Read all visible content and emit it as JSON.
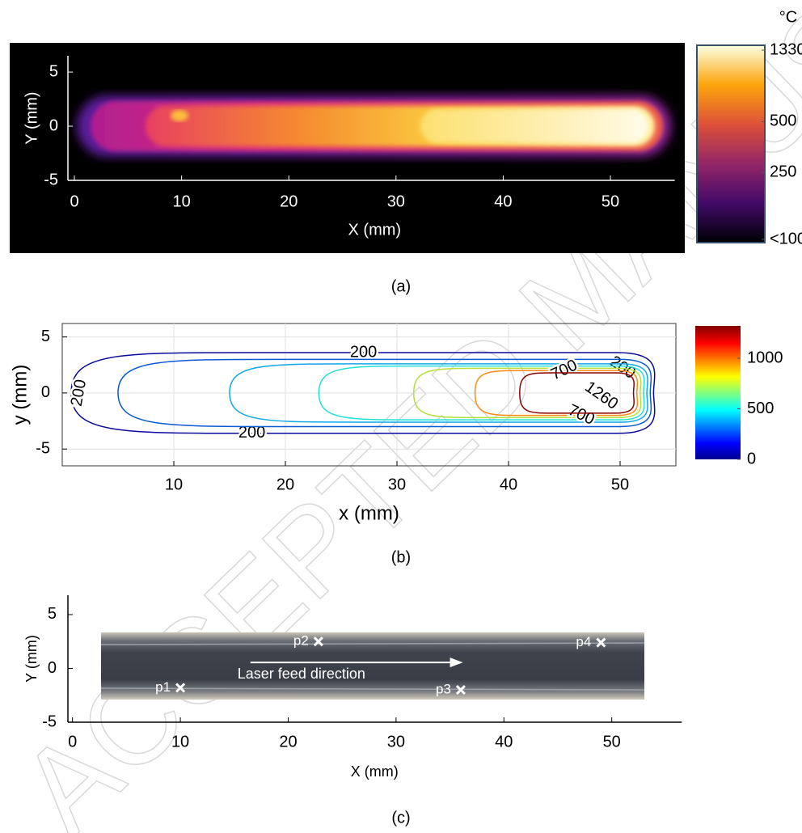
{
  "chart_data": [
    {
      "type": "heatmap",
      "caption": "(a)",
      "xlabel": "X (mm)",
      "ylabel": "Y (mm)",
      "xlim": [
        0,
        56
      ],
      "ylim": [
        -5,
        6.5
      ],
      "xticks": [
        0,
        10,
        20,
        30,
        40,
        50
      ],
      "yticks": [
        -5,
        0,
        5
      ],
      "colorbar": {
        "unit": "°C",
        "log": true,
        "lim": [
          100,
          1330
        ],
        "ticks": [
          {
            "value": 100,
            "label": "<100"
          },
          250,
          500,
          1330
        ]
      }
    },
    {
      "type": "contour",
      "caption": "(b)",
      "xlabel": "x (mm)",
      "ylabel": "y (mm)",
      "xlim": [
        0,
        55
      ],
      "ylim": [
        -6.5,
        6.2
      ],
      "xticks": [
        10,
        20,
        30,
        40,
        50
      ],
      "yticks": [
        -5,
        0,
        5
      ],
      "grid": true,
      "contours": [
        {
          "color": "#0a0a9c",
          "xmin": 0.8,
          "xmax": 53,
          "ymax": 3.6,
          "labels": [
            "200",
            "200",
            "200",
            "200"
          ]
        },
        {
          "color": "#0a5ad2",
          "xmin": 5,
          "xmax": 52.7,
          "ymax": 3.0,
          "labels": []
        },
        {
          "color": "#12a6e6",
          "xmin": 15,
          "xmax": 52.4,
          "ymax": 2.6,
          "labels": []
        },
        {
          "color": "#22e0d8",
          "xmin": 23,
          "xmax": 52.1,
          "ymax": 2.4,
          "labels": []
        },
        {
          "color": "#b4e03c",
          "xmin": 31.5,
          "xmax": 51.8,
          "ymax": 2.2,
          "labels": []
        },
        {
          "color": "#ff8a10",
          "xmin": 37,
          "xmax": 51.5,
          "ymax": 2.0,
          "labels": [
            "700",
            "700"
          ]
        },
        {
          "color": "#8c0000",
          "xmin": 41,
          "xmax": 51.2,
          "ymax": 1.8,
          "labels": [
            "1260"
          ]
        }
      ],
      "colorbar": {
        "lim": [
          0,
          1320
        ],
        "ticks": [
          0,
          500,
          1000
        ]
      }
    },
    {
      "type": "image",
      "caption": "(c)",
      "xlabel": "X (mm)",
      "ylabel": "Y (mm)",
      "xlim": [
        -0.5,
        56.5
      ],
      "ylim": [
        -5,
        6.8
      ],
      "xticks": [
        0,
        10,
        20,
        30,
        40,
        50
      ],
      "yticks": [
        -5,
        0,
        5
      ],
      "points": [
        {
          "label": "p1",
          "x": 10,
          "y": -1.8
        },
        {
          "label": "p2",
          "x": 22.8,
          "y": 2.5
        },
        {
          "label": "p3",
          "x": 36,
          "y": -2
        },
        {
          "label": "p4",
          "x": 49,
          "y": 2.4
        }
      ],
      "annotation": "Laser feed direction"
    }
  ],
  "watermark": "ACCEPTED MANUSCRIPT"
}
